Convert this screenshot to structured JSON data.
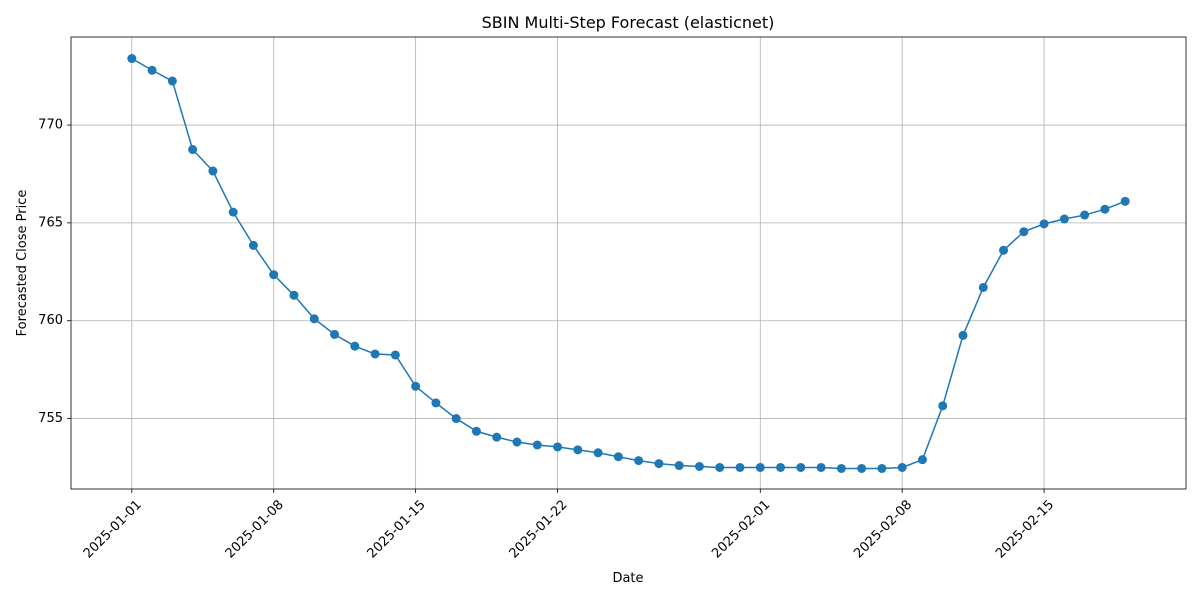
{
  "chart_data": {
    "type": "line",
    "title": "SBIN Multi-Step Forecast (elasticnet)",
    "xlabel": "Date",
    "ylabel": "Forecasted Close Price",
    "x_start": "2025-01-01",
    "x": [
      "2025-01-01",
      "2025-01-02",
      "2025-01-03",
      "2025-01-04",
      "2025-01-05",
      "2025-01-06",
      "2025-01-07",
      "2025-01-08",
      "2025-01-09",
      "2025-01-10",
      "2025-01-11",
      "2025-01-12",
      "2025-01-13",
      "2025-01-14",
      "2025-01-15",
      "2025-01-16",
      "2025-01-17",
      "2025-01-18",
      "2025-01-19",
      "2025-01-20",
      "2025-01-21",
      "2025-01-22",
      "2025-01-23",
      "2025-01-24",
      "2025-01-25",
      "2025-01-26",
      "2025-01-27",
      "2025-01-28",
      "2025-01-29",
      "2025-01-30",
      "2025-01-31",
      "2025-02-01",
      "2025-02-02",
      "2025-02-03",
      "2025-02-04",
      "2025-02-05",
      "2025-02-06",
      "2025-02-07",
      "2025-02-08",
      "2025-02-09",
      "2025-02-10",
      "2025-02-11",
      "2025-02-12",
      "2025-02-13",
      "2025-02-14",
      "2025-02-15",
      "2025-02-16",
      "2025-02-17",
      "2025-02-18",
      "2025-02-19"
    ],
    "series": [
      {
        "values": [
          773.4,
          772.8,
          772.25,
          768.75,
          767.65,
          765.55,
          763.85,
          762.35,
          761.3,
          760.1,
          759.3,
          758.7,
          758.3,
          758.25,
          756.65,
          755.8,
          755.0,
          754.35,
          754.05,
          753.8,
          753.65,
          753.55,
          753.4,
          753.25,
          753.05,
          752.85,
          752.7,
          752.6,
          752.55,
          752.5,
          752.5,
          752.5,
          752.5,
          752.5,
          752.5,
          752.45,
          752.45,
          752.45,
          752.5,
          752.9,
          755.65,
          759.25,
          761.7,
          763.6,
          764.55,
          764.95,
          765.2,
          765.4,
          765.7,
          766.1
        ],
        "color": "#1f77b4"
      }
    ],
    "x_ticks": [
      "2025-01-01",
      "2025-01-08",
      "2025-01-15",
      "2025-01-22",
      "2025-02-01",
      "2025-02-08",
      "2025-02-15"
    ],
    "y_ticks": [
      755,
      760,
      765,
      770
    ],
    "xlim": [
      "2024-12-29",
      "2025-02-22"
    ],
    "ylim": [
      751.4,
      774.5
    ],
    "grid": true,
    "marker": "circle"
  }
}
